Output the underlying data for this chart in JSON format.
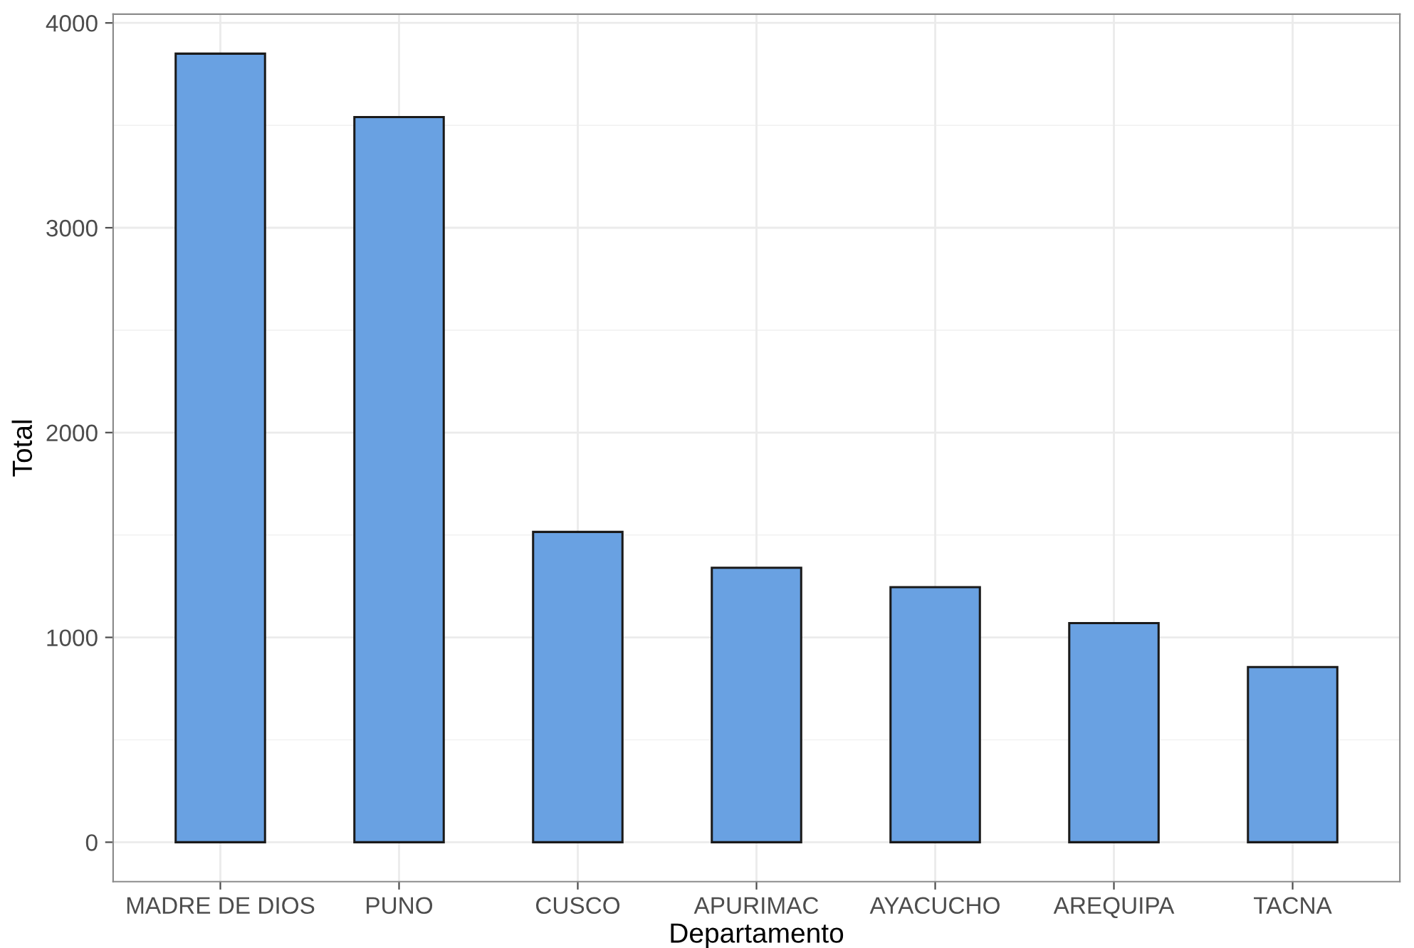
{
  "chart_data": {
    "type": "bar",
    "xlabel": "Departamento",
    "ylabel": "Total",
    "categories": [
      "MADRE DE DIOS",
      "PUNO",
      "CUSCO",
      "APURIMAC",
      "AYACUCHO",
      "AREQUIPA",
      "TACNA"
    ],
    "values": [
      3850,
      3540,
      1515,
      1340,
      1245,
      1070,
      855
    ],
    "color": "#69a1e2",
    "ylim": [
      -192.5,
      4042.5
    ],
    "yticks": [
      0,
      1000,
      2000,
      3000,
      4000
    ],
    "grid": true
  }
}
